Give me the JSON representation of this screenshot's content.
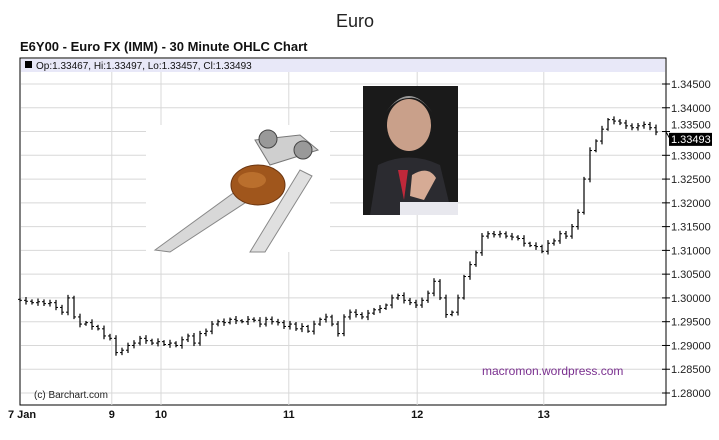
{
  "chart_data": {
    "type": "ohlc",
    "title": "Euro",
    "subtitle": "E6Y00 - Euro FX (IMM) - 30 Minute OHLC Chart",
    "ohlc_readout": "Op:1.33467, Hi:1.33497, Lo:1.33457, Cl:1.33493",
    "last_price": "1.33493",
    "copyright": "(c) Barchart.com",
    "watermark": "macromon.wordpress.com",
    "ylim": [
      1.2775,
      1.3475
    ],
    "y_ticks": [
      "1.34500",
      "1.34000",
      "1.33500",
      "1.33000",
      "1.32500",
      "1.32000",
      "1.31500",
      "1.31000",
      "1.30500",
      "1.30000",
      "1.29500",
      "1.29000",
      "1.28500",
      "1.28000"
    ],
    "x_ticks": [
      {
        "label": "7 Jan",
        "bar": 0
      },
      {
        "label": "9",
        "bar": 15.3
      },
      {
        "label": "10",
        "bar": 23.5
      },
      {
        "label": "11",
        "bar": 44.8
      },
      {
        "label": "12",
        "bar": 66.2
      },
      {
        "label": "13",
        "bar": 87.3
      }
    ],
    "grid": true,
    "closes": [
      1.2995,
      1.2993,
      1.299,
      1.2992,
      1.2988,
      1.299,
      1.298,
      1.297,
      1.3,
      1.296,
      1.2945,
      1.2948,
      1.294,
      1.2935,
      1.292,
      1.2915,
      1.2885,
      1.289,
      1.29,
      1.2905,
      1.2915,
      1.291,
      1.2905,
      1.2908,
      1.2902,
      1.2905,
      1.29,
      1.2912,
      1.292,
      1.2905,
      1.2925,
      1.293,
      1.2945,
      1.295,
      1.2948,
      1.2955,
      1.2952,
      1.295,
      1.2955,
      1.2953,
      1.2945,
      1.2955,
      1.295,
      1.2948,
      1.294,
      1.2945,
      1.2935,
      1.294,
      1.293,
      1.2945,
      1.2955,
      1.296,
      1.2945,
      1.2925,
      1.296,
      1.297,
      1.2965,
      1.296,
      1.2968,
      1.2975,
      1.2978,
      1.2985,
      1.3,
      1.3005,
      1.2995,
      1.299,
      1.2985,
      1.2995,
      1.301,
      1.3035,
      1.3,
      1.2965,
      1.297,
      1.3,
      1.3045,
      1.307,
      1.3095,
      1.313,
      1.3135,
      1.3133,
      1.3135,
      1.313,
      1.3128,
      1.3125,
      1.3115,
      1.311,
      1.3108,
      1.3098,
      1.3115,
      1.312,
      1.3135,
      1.313,
      1.315,
      1.318,
      1.325,
      1.331,
      1.333,
      1.3355,
      1.3375,
      1.3372,
      1.3368,
      1.3362,
      1.3358,
      1.3362,
      1.3365,
      1.3358,
      1.3349
    ],
    "colors": {
      "bars": "#000000",
      "header_bar": "#e8e8f8",
      "grid": "#d8d8d8",
      "watermark": "#7a2f8f"
    }
  },
  "images": {
    "nutcracker": "nutcracker-with-walnut",
    "portrait": "man-in-suit-portrait"
  }
}
